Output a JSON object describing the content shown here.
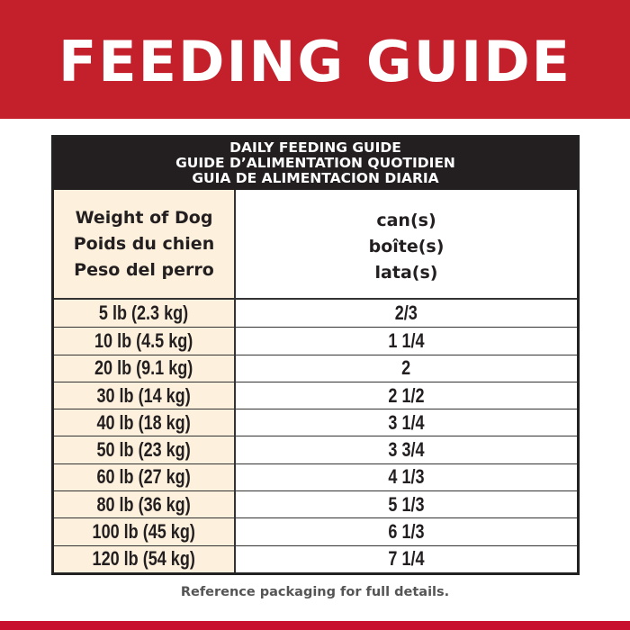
{
  "title": "FEEDING GUIDE",
  "table": {
    "heading": [
      "DAILY FEEDING GUIDE",
      "GUIDE D’ALIMENTATION QUOTIDIEN",
      "GUIA DE ALIMENTACION DIARIA"
    ],
    "col_weight": [
      "Weight of Dog",
      "Poids du chien",
      "Peso del perro"
    ],
    "col_cans": [
      "can(s)",
      "boîte(s)",
      "lata(s)"
    ],
    "rows": [
      {
        "weight": "5 lb (2.3 kg)",
        "cans": "2/3"
      },
      {
        "weight": "10 lb (4.5 kg)",
        "cans": "1 1/4"
      },
      {
        "weight": "20 lb (9.1 kg)",
        "cans": "2"
      },
      {
        "weight": "30 lb (14 kg)",
        "cans": "2 1/2"
      },
      {
        "weight": "40 lb (18 kg)",
        "cans": "3 1/4"
      },
      {
        "weight": "50 lb (23 kg)",
        "cans": "3 3/4"
      },
      {
        "weight": "60 lb (27 kg)",
        "cans": "4 1/3"
      },
      {
        "weight": "80 lb (36 kg)",
        "cans": "5 1/3"
      },
      {
        "weight": "100 lb (45 kg)",
        "cans": "6 1/3"
      },
      {
        "weight": "120 lb (54 kg)",
        "cans": "7 1/4"
      }
    ]
  },
  "note": "Reference packaging for full details.",
  "colors": {
    "brand_red": "#c4202c",
    "cream": "#fdf0dc",
    "header_black": "#231f20"
  }
}
